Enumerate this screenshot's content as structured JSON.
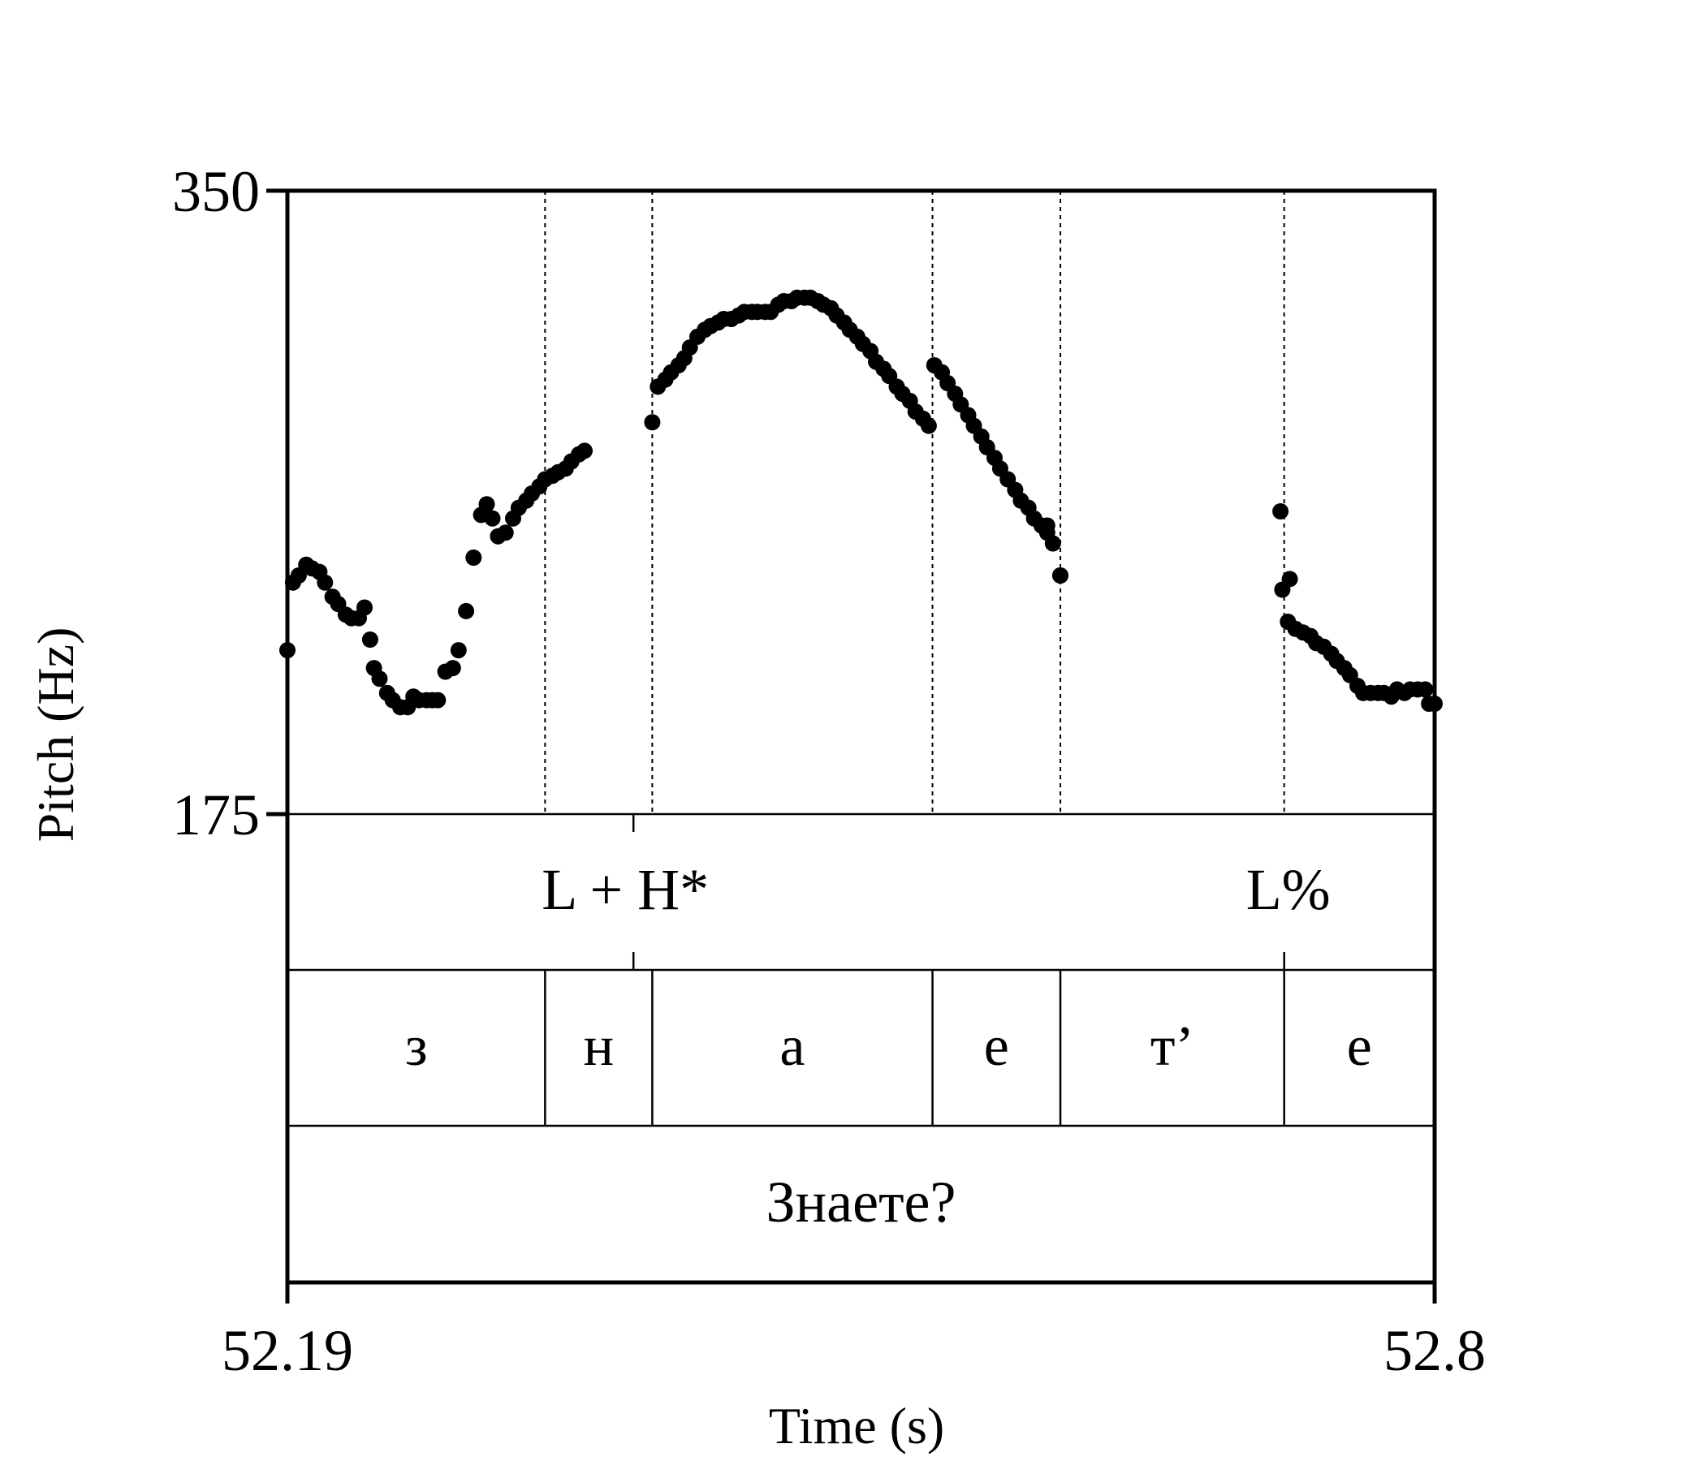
{
  "chart_data": {
    "type": "scatter",
    "xlabel": "Time (s)",
    "ylabel": "Pitch (Hz)",
    "xlim": [
      52.19,
      52.8
    ],
    "ylim": [
      175,
      350
    ],
    "x_tick_labels": [
      "52.19",
      "52.8"
    ],
    "y_tick_labels": [
      "350",
      "175"
    ],
    "marker_color": "#000000",
    "boundaries": [
      52.327,
      52.384,
      52.533,
      52.601,
      52.72
    ],
    "tiers": {
      "tones": [
        {
          "label": "L + H*",
          "time": 52.374
        },
        {
          "label": "L%",
          "time": 52.72
        }
      ],
      "segments": [
        {
          "label": "з",
          "start": 52.19,
          "end": 52.327
        },
        {
          "label": "н",
          "start": 52.327,
          "end": 52.384
        },
        {
          "label": "а",
          "start": 52.384,
          "end": 52.533
        },
        {
          "label": "е",
          "start": 52.533,
          "end": 52.601
        },
        {
          "label": "т’",
          "start": 52.601,
          "end": 52.72
        },
        {
          "label": "е",
          "start": 52.72,
          "end": 52.8
        }
      ],
      "word": {
        "label": "Знаете?",
        "start": 52.19,
        "end": 52.8
      }
    },
    "points": [
      [
        52.19,
        221
      ],
      [
        52.193,
        240
      ],
      [
        52.196,
        242
      ],
      [
        52.2,
        245
      ],
      [
        52.203,
        244
      ],
      [
        52.207,
        243
      ],
      [
        52.21,
        240
      ],
      [
        52.214,
        236
      ],
      [
        52.217,
        234
      ],
      [
        52.221,
        231
      ],
      [
        52.224,
        230
      ],
      [
        52.228,
        230
      ],
      [
        52.231,
        233
      ],
      [
        52.234,
        224
      ],
      [
        52.236,
        216
      ],
      [
        52.239,
        213
      ],
      [
        52.243,
        209
      ],
      [
        52.246,
        207
      ],
      [
        52.25,
        205
      ],
      [
        52.254,
        205
      ],
      [
        52.257,
        208
      ],
      [
        52.26,
        207
      ],
      [
        52.264,
        207
      ],
      [
        52.267,
        207
      ],
      [
        52.27,
        207
      ],
      [
        52.274,
        215
      ],
      [
        52.278,
        216
      ],
      [
        52.281,
        221
      ],
      [
        52.285,
        232
      ],
      [
        52.289,
        247
      ],
      [
        52.293,
        259
      ],
      [
        52.296,
        262
      ],
      [
        52.299,
        258
      ],
      [
        52.302,
        253
      ],
      [
        52.306,
        254
      ],
      [
        52.31,
        258
      ],
      [
        52.313,
        261
      ],
      [
        52.317,
        263
      ],
      [
        52.32,
        265
      ],
      [
        52.324,
        267
      ],
      [
        52.327,
        269
      ],
      [
        52.331,
        270
      ],
      [
        52.334,
        271
      ],
      [
        52.338,
        272
      ],
      [
        52.341,
        274
      ],
      [
        52.345,
        276
      ],
      [
        52.348,
        277
      ],
      [
        52.384,
        285
      ],
      [
        52.387,
        295
      ],
      [
        52.391,
        297
      ],
      [
        52.394,
        299
      ],
      [
        52.398,
        301
      ],
      [
        52.401,
        303
      ],
      [
        52.404,
        306
      ],
      [
        52.408,
        309
      ],
      [
        52.412,
        311
      ],
      [
        52.415,
        312
      ],
      [
        52.419,
        313
      ],
      [
        52.422,
        314
      ],
      [
        52.426,
        314
      ],
      [
        52.43,
        315
      ],
      [
        52.433,
        316
      ],
      [
        52.437,
        316
      ],
      [
        52.44,
        316
      ],
      [
        52.444,
        316
      ],
      [
        52.447,
        316
      ],
      [
        52.451,
        318
      ],
      [
        52.454,
        319
      ],
      [
        52.458,
        319
      ],
      [
        52.461,
        320
      ],
      [
        52.465,
        320
      ],
      [
        52.468,
        320
      ],
      [
        52.472,
        319
      ],
      [
        52.475,
        318
      ],
      [
        52.479,
        317
      ],
      [
        52.482,
        315
      ],
      [
        52.486,
        313
      ],
      [
        52.489,
        311
      ],
      [
        52.493,
        309
      ],
      [
        52.496,
        307
      ],
      [
        52.5,
        305
      ],
      [
        52.503,
        302
      ],
      [
        52.507,
        300
      ],
      [
        52.51,
        298
      ],
      [
        52.514,
        295
      ],
      [
        52.517,
        293
      ],
      [
        52.521,
        291
      ],
      [
        52.524,
        288
      ],
      [
        52.528,
        286
      ],
      [
        52.531,
        284
      ],
      [
        52.534,
        301
      ],
      [
        52.538,
        299
      ],
      [
        52.541,
        296
      ],
      [
        52.545,
        293
      ],
      [
        52.548,
        290
      ],
      [
        52.552,
        287
      ],
      [
        52.555,
        284
      ],
      [
        52.559,
        281
      ],
      [
        52.562,
        278
      ],
      [
        52.566,
        275
      ],
      [
        52.569,
        272
      ],
      [
        52.573,
        269
      ],
      [
        52.577,
        266
      ],
      [
        52.58,
        263
      ],
      [
        52.584,
        261
      ],
      [
        52.587,
        258
      ],
      [
        52.591,
        256
      ],
      [
        52.594,
        254
      ],
      [
        52.597,
        251
      ],
      [
        52.601,
        242
      ],
      [
        52.594,
        256
      ],
      [
        52.601,
        242
      ],
      [
        52.718,
        260
      ],
      [
        52.719,
        238
      ],
      [
        52.723,
        241
      ],
      [
        52.722,
        229
      ],
      [
        52.726,
        227
      ],
      [
        52.73,
        226
      ],
      [
        52.734,
        225
      ],
      [
        52.737,
        223
      ],
      [
        52.741,
        222
      ],
      [
        52.745,
        220
      ],
      [
        52.748,
        218
      ],
      [
        52.752,
        216
      ],
      [
        52.755,
        214
      ],
      [
        52.759,
        211
      ],
      [
        52.762,
        209
      ],
      [
        52.766,
        209
      ],
      [
        52.77,
        209
      ],
      [
        52.773,
        209
      ],
      [
        52.777,
        208
      ],
      [
        52.78,
        210
      ],
      [
        52.784,
        209
      ],
      [
        52.787,
        210
      ],
      [
        52.791,
        210
      ],
      [
        52.795,
        210
      ],
      [
        52.797,
        206
      ],
      [
        52.8,
        206
      ]
    ]
  }
}
